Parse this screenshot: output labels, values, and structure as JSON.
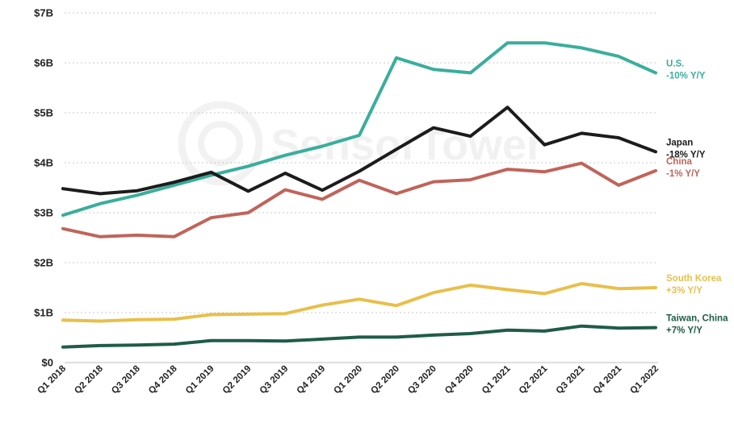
{
  "chart_data": {
    "type": "line",
    "categories": [
      "Q1 2018",
      "Q2 2018",
      "Q3 2018",
      "Q4 2018",
      "Q1 2019",
      "Q2 2019",
      "Q3 2019",
      "Q4 2019",
      "Q1 2020",
      "Q2 2020",
      "Q3 2020",
      "Q4 2020",
      "Q1 2021",
      "Q2 2021",
      "Q3 2021",
      "Q4 2021",
      "Q1 2022"
    ],
    "y_ticks": [
      "$0",
      "$1B",
      "$2B",
      "$3B",
      "$4B",
      "$5B",
      "$6B",
      "$7B"
    ],
    "ylim": [
      0,
      7
    ],
    "grid": true,
    "legend": "end-of-line labels on the right",
    "watermark": "SensorTower",
    "series": [
      {
        "name": "U.S.",
        "change": "-10% Y/Y",
        "color": "#3aae9c",
        "values": [
          2.95,
          3.18,
          3.35,
          3.55,
          3.75,
          3.93,
          4.15,
          4.33,
          4.55,
          6.1,
          5.87,
          5.8,
          6.4,
          6.4,
          6.3,
          6.13,
          5.8
        ]
      },
      {
        "name": "Japan",
        "change": "-18% Y/Y",
        "color": "#1c1c1c",
        "values": [
          3.48,
          3.38,
          3.44,
          3.61,
          3.81,
          3.43,
          3.79,
          3.45,
          3.83,
          4.27,
          4.7,
          4.53,
          5.11,
          4.36,
          4.59,
          4.5,
          4.22
        ]
      },
      {
        "name": "China",
        "change": "-1% Y/Y",
        "color": "#c0645a",
        "values": [
          2.68,
          2.52,
          2.55,
          2.52,
          2.9,
          3.0,
          3.46,
          3.27,
          3.65,
          3.38,
          3.62,
          3.66,
          3.87,
          3.82,
          3.99,
          3.55,
          3.84
        ]
      },
      {
        "name": "South Korea",
        "change": "+3% Y/Y",
        "color": "#e8bf4a",
        "values": [
          0.85,
          0.83,
          0.86,
          0.87,
          0.96,
          0.97,
          0.98,
          1.15,
          1.27,
          1.14,
          1.4,
          1.55,
          1.46,
          1.38,
          1.58,
          1.48,
          1.5
        ]
      },
      {
        "name": "Taiwan, China",
        "change": "+7% Y/Y",
        "color": "#1f5c49",
        "values": [
          0.31,
          0.34,
          0.35,
          0.37,
          0.44,
          0.44,
          0.43,
          0.47,
          0.51,
          0.51,
          0.55,
          0.58,
          0.65,
          0.63,
          0.73,
          0.69,
          0.7
        ]
      }
    ]
  }
}
